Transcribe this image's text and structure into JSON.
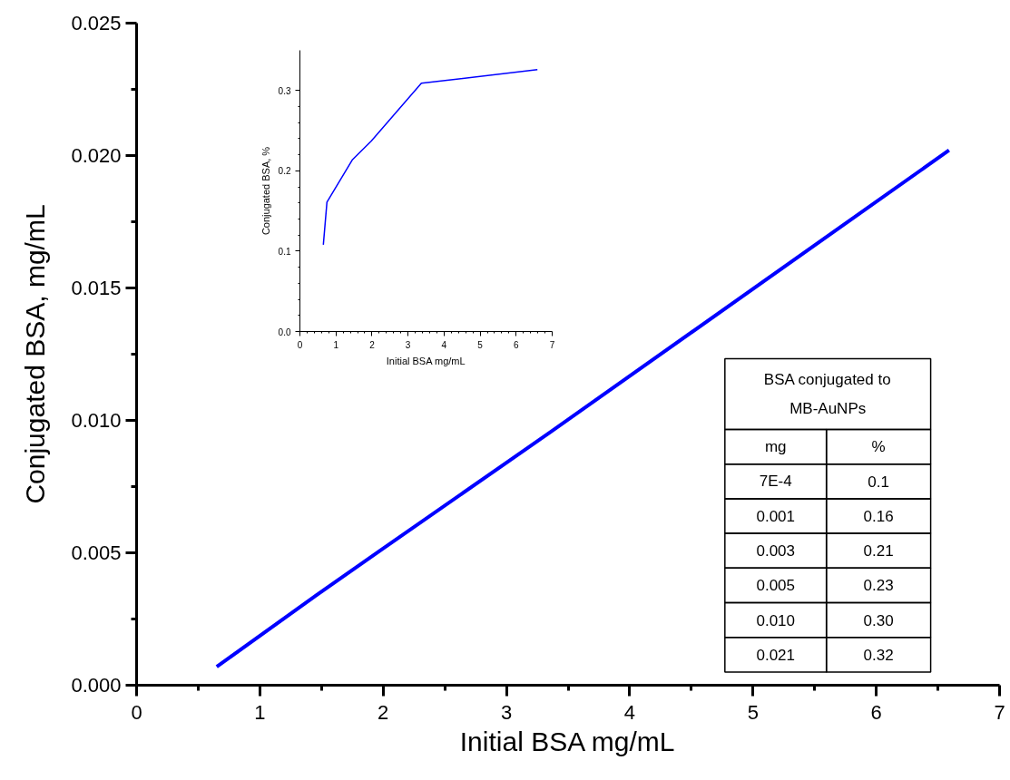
{
  "chart_data": [
    {
      "type": "line",
      "xlabel": "Initial BSA mg/mL",
      "ylabel": "Conjugated BSA, mg/mL",
      "x": [
        0.65,
        0.75,
        1.46,
        1.98,
        3.37,
        6.59
      ],
      "series": [
        {
          "color": "#0000ff",
          "values": [
            0.0007,
            0.00103,
            0.0034,
            0.0051,
            0.0096,
            0.0202
          ]
        }
      ],
      "xlim": [
        0,
        7
      ],
      "ylim": [
        0,
        0.025
      ],
      "xticks": [
        0,
        1,
        2,
        3,
        4,
        5,
        6,
        7
      ],
      "yticks": [
        {
          "value": 0,
          "label": "0.000"
        },
        {
          "value": 0.005,
          "label": "0.005"
        },
        {
          "value": 0.01,
          "label": "0.010"
        },
        {
          "value": 0.015,
          "label": "0.015"
        },
        {
          "value": 0.02,
          "label": "0.020"
        },
        {
          "value": 0.025,
          "label": "0.025"
        }
      ],
      "grid": false,
      "annotations": [
        "BSA conjugated to\nMB-AuNPs",
        "mg",
        "%",
        "7E-4",
        "0.1",
        "0.001",
        "0.16",
        "0.003",
        "0.21",
        "0.005",
        "0.23",
        "0.010",
        "0.30",
        "0.021",
        "0.32"
      ]
    },
    {
      "type": "line",
      "xlabel": "Initial BSA mg/mL",
      "ylabel": "Conjugated BSA, %",
      "x": [
        0.65,
        0.75,
        1.46,
        1.98,
        3.37,
        6.59
      ],
      "series": [
        {
          "color": "#0000ff",
          "values": [
            0.108,
            0.161,
            0.214,
            0.237,
            0.309,
            0.326
          ]
        }
      ],
      "xlim": [
        0,
        7
      ],
      "ylim": [
        0,
        0.35
      ],
      "xticks": [
        0,
        1,
        2,
        3,
        4,
        5,
        6,
        7
      ],
      "yticks": [
        {
          "value": 0,
          "label": "0.0"
        },
        {
          "value": 0.1,
          "label": "0.1"
        },
        {
          "value": 0.2,
          "label": "0.2"
        },
        {
          "value": 0.3,
          "label": "0.3"
        }
      ],
      "grid": false
    }
  ]
}
